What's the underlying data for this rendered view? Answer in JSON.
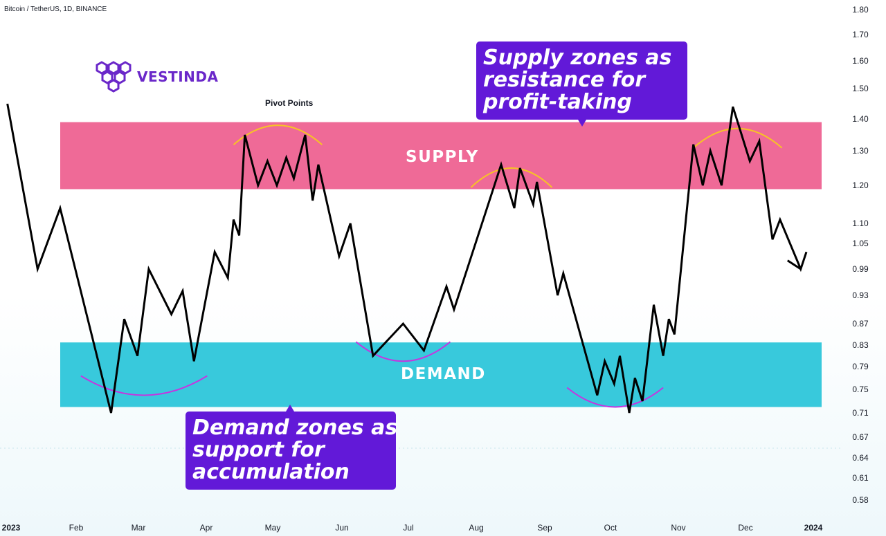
{
  "header": {
    "symbol": "Bitcoin / TetherUS, 1D, BINANCE"
  },
  "logo": {
    "text": "VESTINDA",
    "icon": "hexagon-cluster-icon",
    "color": "#6a27c9"
  },
  "annotations": {
    "pivot_points": "Pivot Points",
    "supply_label": "SUPPLY",
    "demand_label": "DEMAND",
    "supply_callout": [
      "Supply zones as",
      "resistance for",
      "profit-taking"
    ],
    "demand_callout": [
      "Demand zones as",
      "support for",
      "accumulation"
    ]
  },
  "colors": {
    "supply_zone": "#ef6a97",
    "demand_zone": "#38c9dc",
    "callout": "#6219d8",
    "pivot_top_arc": "#f7c325",
    "pivot_bottom_arc": "#c535e0",
    "price_line": "#000000"
  },
  "chart_data": {
    "type": "line",
    "title": "Bitcoin / TetherUS, 1D, BINANCE",
    "y_axis_side": "right",
    "yticks": [
      "1.80",
      "1.70",
      "1.60",
      "1.50",
      "1.40",
      "1.30",
      "1.20",
      "1.10",
      "1.05",
      "0.99",
      "0.93",
      "0.87",
      "0.83",
      "0.79",
      "0.75",
      "0.71",
      "0.67",
      "0.64",
      "0.61",
      "0.58"
    ],
    "xticks": [
      {
        "label": "2023",
        "bold": true
      },
      {
        "label": "Feb"
      },
      {
        "label": "Mar"
      },
      {
        "label": "Apr"
      },
      {
        "label": "May"
      },
      {
        "label": "Jun"
      },
      {
        "label": "Jul"
      },
      {
        "label": "Aug"
      },
      {
        "label": "Sep"
      },
      {
        "label": "Oct"
      },
      {
        "label": "Nov"
      },
      {
        "label": "Dec"
      },
      {
        "label": "2024",
        "bold": true
      }
    ],
    "zones": [
      {
        "name": "SUPPLY",
        "low": 1.19,
        "high": 1.39
      },
      {
        "name": "DEMAND",
        "low": 0.72,
        "high": 0.835
      }
    ],
    "series": [
      {
        "values": [
          [
            "2023-01-02",
            1.45
          ],
          [
            "2023-01-18",
            0.99
          ],
          [
            "2023-01-30",
            1.14
          ],
          [
            "2023-02-26",
            0.71
          ],
          [
            "2023-03-05",
            0.88
          ],
          [
            "2023-03-12",
            0.81
          ],
          [
            "2023-03-18",
            0.99
          ],
          [
            "2023-03-30",
            0.89
          ],
          [
            "2023-04-05",
            0.94
          ],
          [
            "2023-04-11",
            0.8
          ],
          [
            "2023-04-22",
            1.03
          ],
          [
            "2023-04-29",
            0.97
          ],
          [
            "2023-05-02",
            1.11
          ],
          [
            "2023-05-05",
            1.07
          ],
          [
            "2023-05-08",
            1.35
          ],
          [
            "2023-05-15",
            1.2
          ],
          [
            "2023-05-20",
            1.27
          ],
          [
            "2023-05-25",
            1.2
          ],
          [
            "2023-05-30",
            1.28
          ],
          [
            "2023-06-03",
            1.22
          ],
          [
            "2023-06-09",
            1.35
          ],
          [
            "2023-06-13",
            1.16
          ],
          [
            "2023-06-16",
            1.26
          ],
          [
            "2023-06-27",
            1.02
          ],
          [
            "2023-07-03",
            1.1
          ],
          [
            "2023-07-15",
            0.81
          ],
          [
            "2023-07-31",
            0.87
          ],
          [
            "2023-08-11",
            0.82
          ],
          [
            "2023-08-23",
            0.95
          ],
          [
            "2023-08-27",
            0.9
          ],
          [
            "2023-09-21",
            1.26
          ],
          [
            "2023-09-28",
            1.14
          ],
          [
            "2023-10-01",
            1.25
          ],
          [
            "2023-10-08",
            1.15
          ],
          [
            "2023-10-10",
            1.21
          ],
          [
            "2023-10-21",
            0.93
          ],
          [
            "2023-10-24",
            0.98
          ],
          [
            "2023-11-11",
            0.74
          ],
          [
            "2023-11-15",
            0.8
          ],
          [
            "2023-11-20",
            0.76
          ],
          [
            "2023-11-23",
            0.81
          ],
          [
            "2023-11-28",
            0.71
          ],
          [
            "2023-12-01",
            0.77
          ],
          [
            "2023-12-05",
            0.73
          ],
          [
            "2023-12-11",
            0.91
          ],
          [
            "2023-12-16",
            0.81
          ],
          [
            "2023-12-19",
            0.88
          ],
          [
            "2023-12-22",
            0.85
          ],
          [
            "2024-01-01",
            1.32
          ],
          [
            "2024-01-06",
            1.2
          ],
          [
            "2024-01-10",
            1.3
          ],
          [
            "2024-01-16",
            1.2
          ],
          [
            "2024-01-22",
            1.44
          ],
          [
            "2024-01-31",
            1.27
          ],
          [
            "2024-02-05",
            1.33
          ],
          [
            "2024-02-12",
            1.06
          ],
          [
            "2024-02-16",
            1.11
          ],
          [
            "2024-02-27",
            0.99
          ],
          [
            "2024-03-01",
            1.03
          ]
        ]
      }
    ],
    "arrow_tail": [
      "2024-02-20",
      1.01
    ],
    "pivot_arcs": [
      {
        "type": "top",
        "from": "2023-05-02",
        "to": "2023-06-18",
        "level": 1.38
      },
      {
        "type": "top",
        "from": "2023-09-05",
        "to": "2023-10-18",
        "level": 1.25
      },
      {
        "type": "top",
        "from": "2024-01-01",
        "to": "2024-02-17",
        "level": 1.37
      },
      {
        "type": "bottom",
        "from": "2023-02-10",
        "to": "2023-04-18",
        "level": 0.74
      },
      {
        "type": "bottom",
        "from": "2023-07-06",
        "to": "2023-08-25",
        "level": 0.8
      },
      {
        "type": "bottom",
        "from": "2023-10-26",
        "to": "2023-12-16",
        "level": 0.72
      }
    ]
  }
}
